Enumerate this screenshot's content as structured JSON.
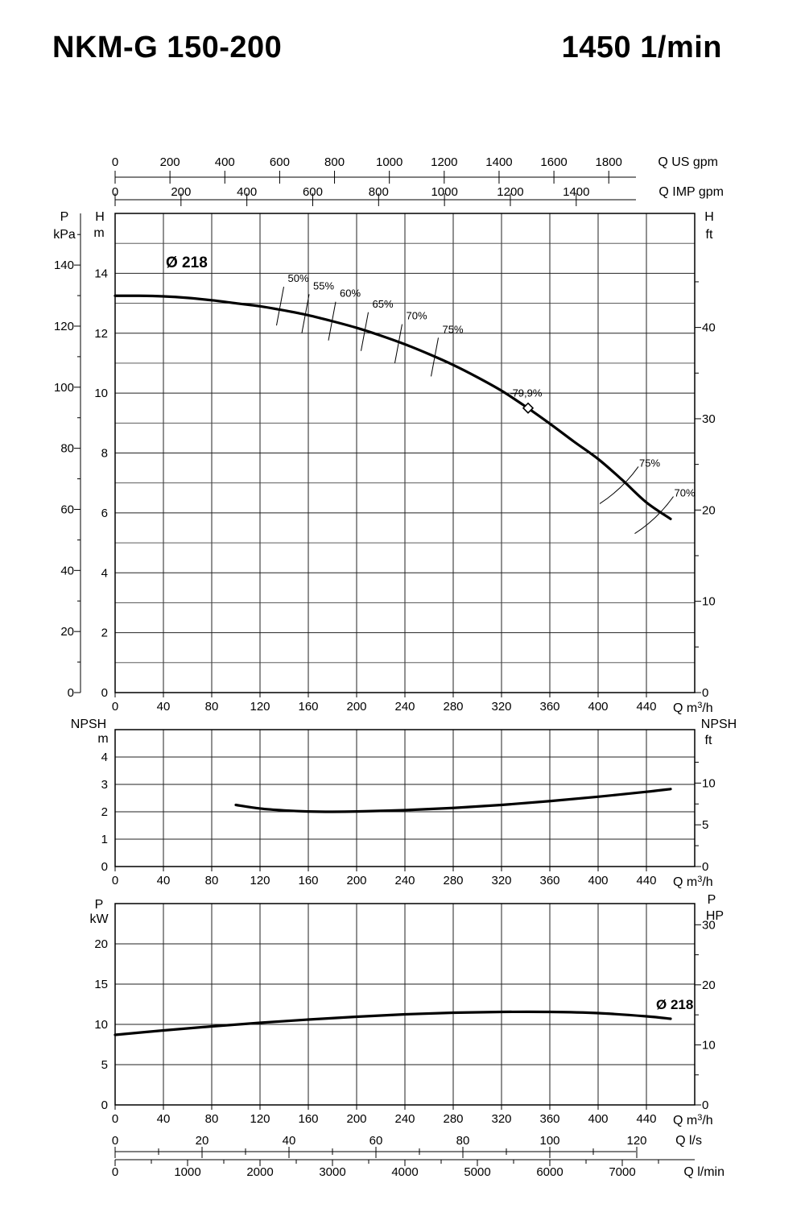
{
  "header": {
    "title": "NKM-G 150-200",
    "speed": "1450 1/min"
  },
  "chart_data": [
    {
      "type": "line",
      "name": "head",
      "title": "H-Q curve",
      "x": [
        0,
        20,
        40,
        60,
        80,
        100,
        120,
        140,
        160,
        180,
        200,
        220,
        240,
        260,
        280,
        300,
        320,
        340,
        360,
        380,
        400,
        420,
        440,
        460
      ],
      "series": [
        {
          "name": "H (m)",
          "values": [
            13.25,
            13.25,
            13.23,
            13.18,
            13.1,
            13.0,
            12.9,
            12.76,
            12.6,
            12.4,
            12.18,
            11.92,
            11.63,
            11.3,
            10.94,
            10.53,
            10.08,
            9.55,
            8.98,
            8.38,
            7.8,
            7.1,
            6.35,
            5.8
          ]
        }
      ],
      "annotations": {
        "diameter": "Ø 218",
        "bep_label": "79,9%",
        "bep_q": 342,
        "bep_h": 9.5
      },
      "efficiency_marks": [
        {
          "label": "50%",
          "q": 137,
          "h": 12.85
        },
        {
          "label": "55%",
          "q": 158,
          "h": 12.6
        },
        {
          "label": "60%",
          "q": 180,
          "h": 12.35
        },
        {
          "label": "65%",
          "q": 207,
          "h": 12.0
        },
        {
          "label": "70%",
          "q": 235,
          "h": 11.6
        },
        {
          "label": "75%",
          "q": 265,
          "h": 11.15
        },
        {
          "label": "75%",
          "q": 428,
          "h": 6.9
        },
        {
          "label": "70%",
          "q": 457,
          "h": 5.9
        }
      ],
      "xlabel": "Q m³/h",
      "xlim": [
        0,
        480
      ],
      "ylim": [
        0,
        16
      ],
      "xticks": [
        "0",
        "40",
        "80",
        "120",
        "160",
        "200",
        "240",
        "280",
        "320",
        "360",
        "400",
        "440"
      ],
      "left_axis_h": {
        "label_top": "H",
        "label_unit": "m",
        "ticks": [
          "0",
          "2",
          "4",
          "6",
          "8",
          "10",
          "12",
          "14"
        ]
      },
      "left_axis_p": {
        "label_top": "P",
        "label_unit": "kPa",
        "ticks": [
          "0",
          "20",
          "40",
          "60",
          "80",
          "100",
          "120",
          "140"
        ]
      },
      "right_axis_ft": {
        "label_top": "H",
        "label_unit": "ft",
        "ticks": [
          "0",
          "10",
          "20",
          "30",
          "40"
        ]
      },
      "top_axis_us": {
        "label": "Q US gpm",
        "ticks": [
          "0",
          "200",
          "400",
          "600",
          "800",
          "1000",
          "1200",
          "1400",
          "1600",
          "1800"
        ]
      },
      "top_axis_imp": {
        "label": "Q IMP gpm",
        "ticks": [
          "0",
          "200",
          "400",
          "600",
          "800",
          "1000",
          "1200",
          "1400"
        ]
      },
      "grid": true
    },
    {
      "type": "line",
      "name": "npsh",
      "x": [
        100,
        120,
        140,
        160,
        180,
        200,
        240,
        280,
        320,
        360,
        400,
        440,
        460
      ],
      "series": [
        {
          "name": "NPSH (m)",
          "values": [
            2.25,
            2.12,
            2.05,
            2.01,
            2.0,
            2.01,
            2.06,
            2.14,
            2.25,
            2.39,
            2.55,
            2.73,
            2.83
          ]
        }
      ],
      "xlabel": "Q m³/h",
      "xlim": [
        0,
        480
      ],
      "ylim": [
        0,
        5
      ],
      "xticks": [
        "0",
        "40",
        "80",
        "120",
        "160",
        "200",
        "240",
        "280",
        "320",
        "360",
        "400",
        "440"
      ],
      "left_axis": {
        "label_top": "NPSH",
        "label_unit": "m",
        "ticks": [
          "0",
          "1",
          "2",
          "3",
          "4"
        ]
      },
      "right_axis": {
        "label_top": "NPSH",
        "label_unit": "ft",
        "ticks": [
          "0",
          "5",
          "10"
        ]
      },
      "grid": true
    },
    {
      "type": "line",
      "name": "power",
      "x": [
        0,
        40,
        80,
        120,
        160,
        200,
        240,
        280,
        320,
        360,
        400,
        440,
        460
      ],
      "series": [
        {
          "name": "P (kW)",
          "values": [
            8.7,
            9.25,
            9.75,
            10.2,
            10.6,
            10.95,
            11.25,
            11.45,
            11.55,
            11.55,
            11.4,
            11.0,
            10.7
          ]
        }
      ],
      "annotations": {
        "diameter": "Ø 218"
      },
      "xlabel": "Q m³/h",
      "xlim": [
        0,
        480
      ],
      "ylim": [
        0,
        25
      ],
      "xticks": [
        "0",
        "40",
        "80",
        "120",
        "160",
        "200",
        "240",
        "280",
        "320",
        "360",
        "400",
        "440"
      ],
      "left_axis": {
        "label_top": "P",
        "label_unit": "kW",
        "ticks": [
          "0",
          "5",
          "10",
          "15",
          "20"
        ]
      },
      "right_axis": {
        "label_top": "P",
        "label_unit": "HP",
        "ticks": [
          "0",
          "10",
          "20",
          "30"
        ]
      },
      "bottom_axis_ls": {
        "label": "Q l/s",
        "ticks": [
          "0",
          "20",
          "40",
          "60",
          "80",
          "100",
          "120"
        ]
      },
      "bottom_axis_lmin": {
        "label": "Q l/min",
        "ticks": [
          "0",
          "1000",
          "2000",
          "3000",
          "4000",
          "5000",
          "6000",
          "7000"
        ]
      },
      "grid": true
    }
  ]
}
